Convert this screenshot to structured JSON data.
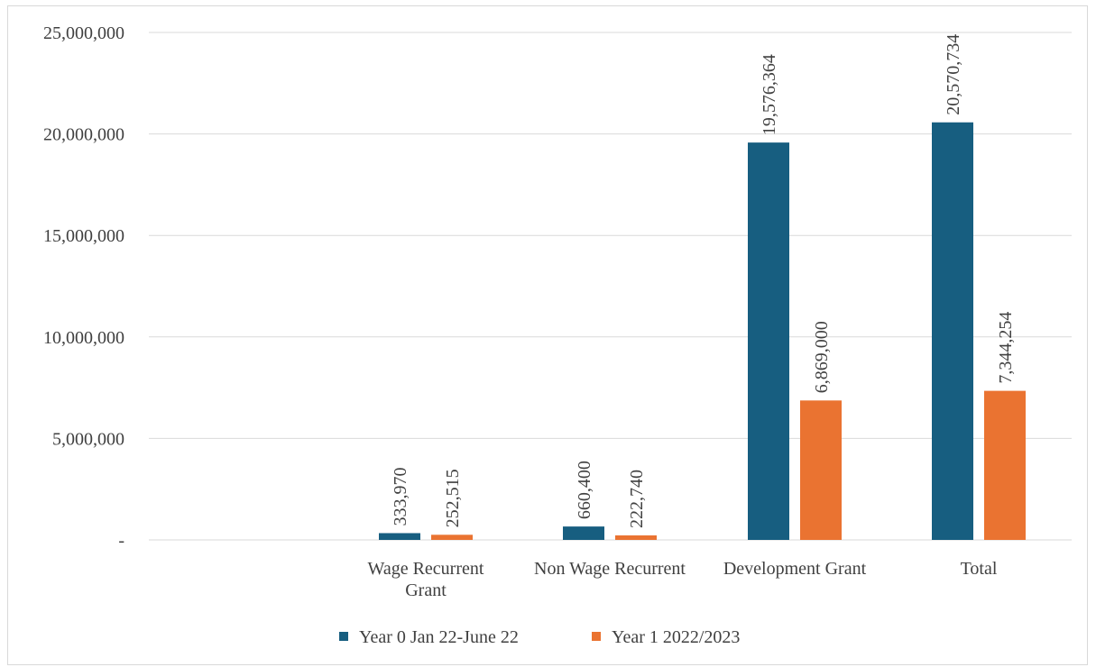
{
  "chart_data": {
    "type": "bar",
    "categories": [
      [
        "Wage Recurrent",
        "Grant"
      ],
      [
        "Non Wage Recurrent"
      ],
      [
        "Development  Grant"
      ],
      [
        "Total"
      ]
    ],
    "series": [
      {
        "name": "Year 0 Jan 22-June 22",
        "color": "#175e80",
        "values": [
          333970,
          660400,
          19576364,
          20570734
        ],
        "labels": [
          "333,970",
          "660,400",
          "19,576,364",
          "20,570,734"
        ]
      },
      {
        "name": "Year 1 2022/2023",
        "color": "#ea7331",
        "values": [
          252515,
          222740,
          6869000,
          7344254
        ],
        "labels": [
          "252,515",
          "222,740",
          "6,869,000",
          "7,344,254"
        ]
      }
    ],
    "ylim": [
      0,
      25000000
    ],
    "yticks": [
      0,
      5000000,
      10000000,
      15000000,
      20000000,
      25000000
    ],
    "ytick_labels": [
      "-",
      "5,000,000",
      "10,000,000",
      "15,000,000",
      "20,000,000",
      "25,000,000"
    ],
    "grid": true,
    "legend_position": "bottom",
    "data_labels_rotated": true
  }
}
